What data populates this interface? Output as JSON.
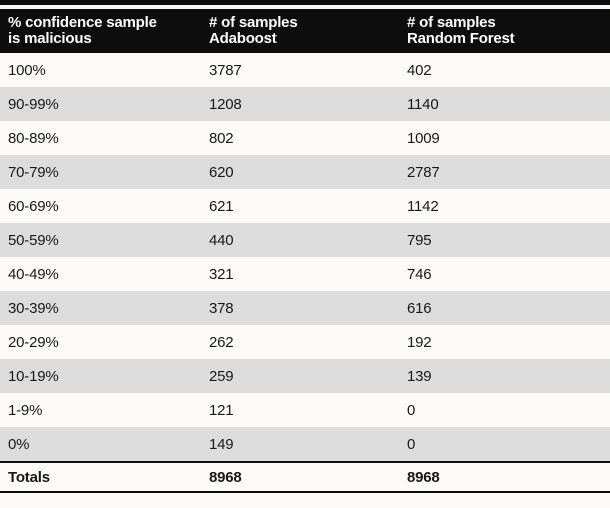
{
  "table": {
    "columns": [
      {
        "line1": "% confidence sample",
        "line2": "is malicious"
      },
      {
        "line1": "# of samples",
        "line2": "Adaboost"
      },
      {
        "line1": "# of samples",
        "line2": "Random Forest"
      }
    ],
    "rows": [
      {
        "confidence": "100%",
        "adaboost": "3787",
        "random_forest": "402"
      },
      {
        "confidence": "90-99%",
        "adaboost": "1208",
        "random_forest": "1140"
      },
      {
        "confidence": "80-89%",
        "adaboost": "802",
        "random_forest": "1009"
      },
      {
        "confidence": "70-79%",
        "adaboost": "620",
        "random_forest": "2787"
      },
      {
        "confidence": "60-69%",
        "adaboost": "621",
        "random_forest": "1142"
      },
      {
        "confidence": "50-59%",
        "adaboost": "440",
        "random_forest": "795"
      },
      {
        "confidence": "40-49%",
        "adaboost": "321",
        "random_forest": "746"
      },
      {
        "confidence": "30-39%",
        "adaboost": "378",
        "random_forest": "616"
      },
      {
        "confidence": "20-29%",
        "adaboost": "262",
        "random_forest": "192"
      },
      {
        "confidence": "10-19%",
        "adaboost": "259",
        "random_forest": "139"
      },
      {
        "confidence": "1-9%",
        "adaboost": "121",
        "random_forest": "0"
      },
      {
        "confidence": "0%",
        "adaboost": "149",
        "random_forest": "0"
      }
    ],
    "totals": {
      "label": "Totals",
      "adaboost": "8968",
      "random_forest": "8968"
    }
  },
  "colors": {
    "header_bg": "#0d0d0d",
    "header_text": "#ffffff",
    "row_bg": "#fcfbf9",
    "row_alt_bg": "#dcdcdc",
    "rule": "#0d0d0d"
  },
  "chart_data": {
    "type": "table",
    "title": "",
    "columns": [
      "% confidence sample is malicious",
      "# of samples Adaboost",
      "# of samples Random Forest"
    ],
    "rows": [
      [
        "100%",
        3787,
        402
      ],
      [
        "90-99%",
        1208,
        1140
      ],
      [
        "80-89%",
        802,
        1009
      ],
      [
        "70-79%",
        620,
        2787
      ],
      [
        "60-69%",
        621,
        1142
      ],
      [
        "50-59%",
        440,
        795
      ],
      [
        "40-49%",
        321,
        746
      ],
      [
        "30-39%",
        378,
        616
      ],
      [
        "20-29%",
        262,
        192
      ],
      [
        "10-19%",
        259,
        139
      ],
      [
        "1-9%",
        121,
        0
      ],
      [
        "0%",
        149,
        0
      ]
    ],
    "totals": [
      "Totals",
      8968,
      8968
    ],
    "layout_hints": {
      "zebra_striping": true,
      "header_style": "black-bar-white-text",
      "top_rule": true,
      "totals_rules": "above-and-below"
    }
  }
}
